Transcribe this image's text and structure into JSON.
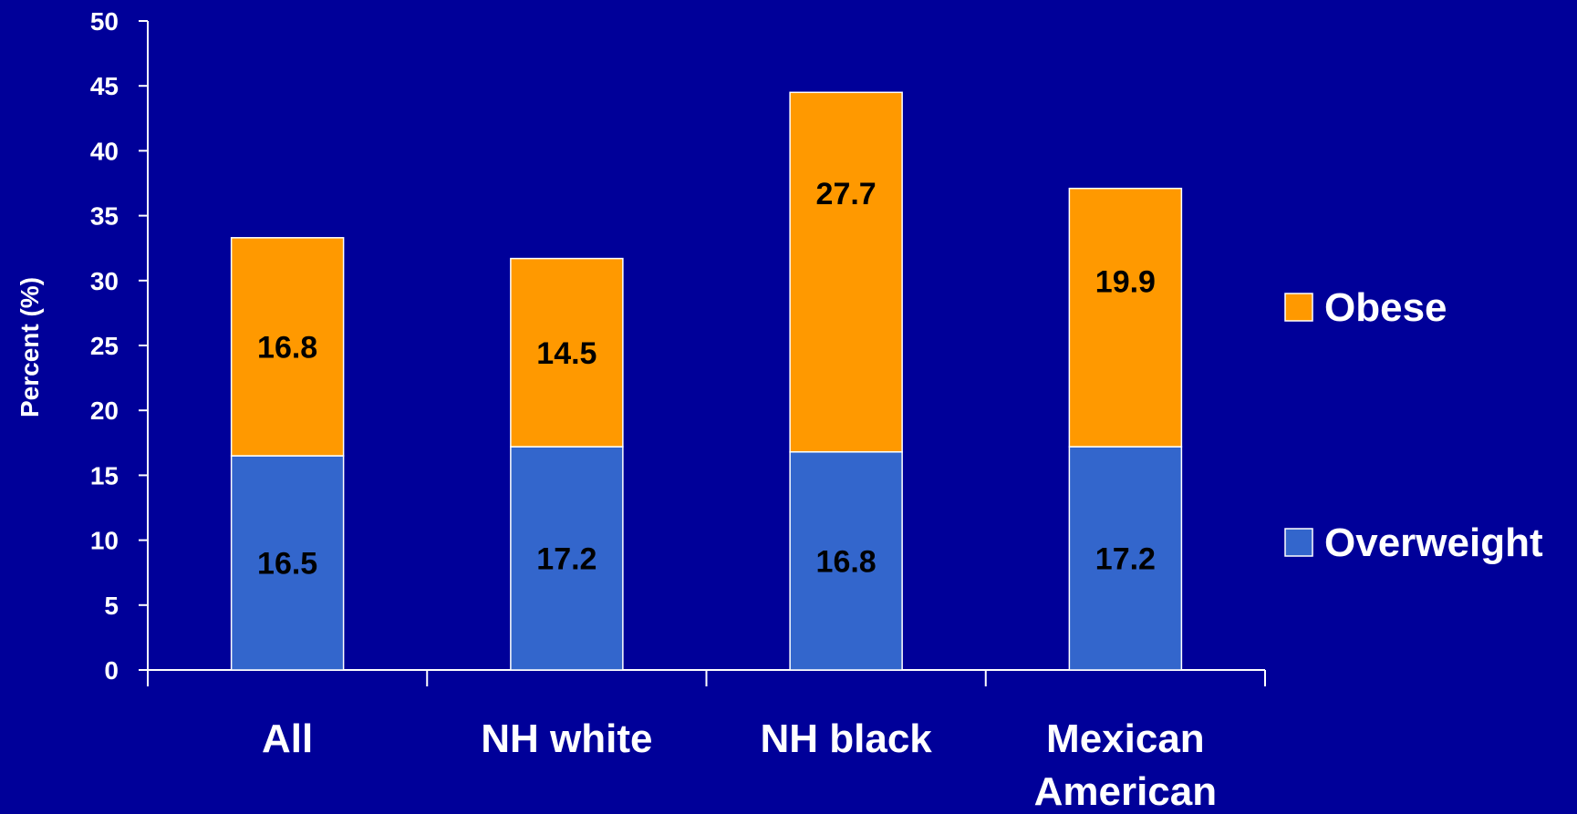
{
  "background_color": "#000099",
  "chart_data": {
    "type": "bar",
    "stacked": true,
    "categories": [
      "All",
      "NH white",
      "NH black",
      "Mexican American"
    ],
    "category_label_lines": [
      [
        "All"
      ],
      [
        "NH white"
      ],
      [
        "NH black"
      ],
      [
        "Mexican",
        "American"
      ]
    ],
    "series": [
      {
        "name": "Overweight",
        "values": [
          16.5,
          17.2,
          16.8,
          17.2
        ],
        "color": "#3366CC"
      },
      {
        "name": "Obese",
        "values": [
          16.8,
          14.5,
          27.7,
          19.9
        ],
        "color": "#FF9900"
      }
    ],
    "title": "",
    "xlabel": "",
    "ylabel": "Percent (%)",
    "ylim": [
      0,
      50
    ],
    "yticks": [
      0,
      5,
      10,
      15,
      20,
      25,
      30,
      35,
      40,
      45,
      50
    ],
    "grid": false,
    "legend_position": "right",
    "data_label_color": "#000000",
    "text_color": "#FFFFFF",
    "axis_color": "#FFFFFF"
  }
}
